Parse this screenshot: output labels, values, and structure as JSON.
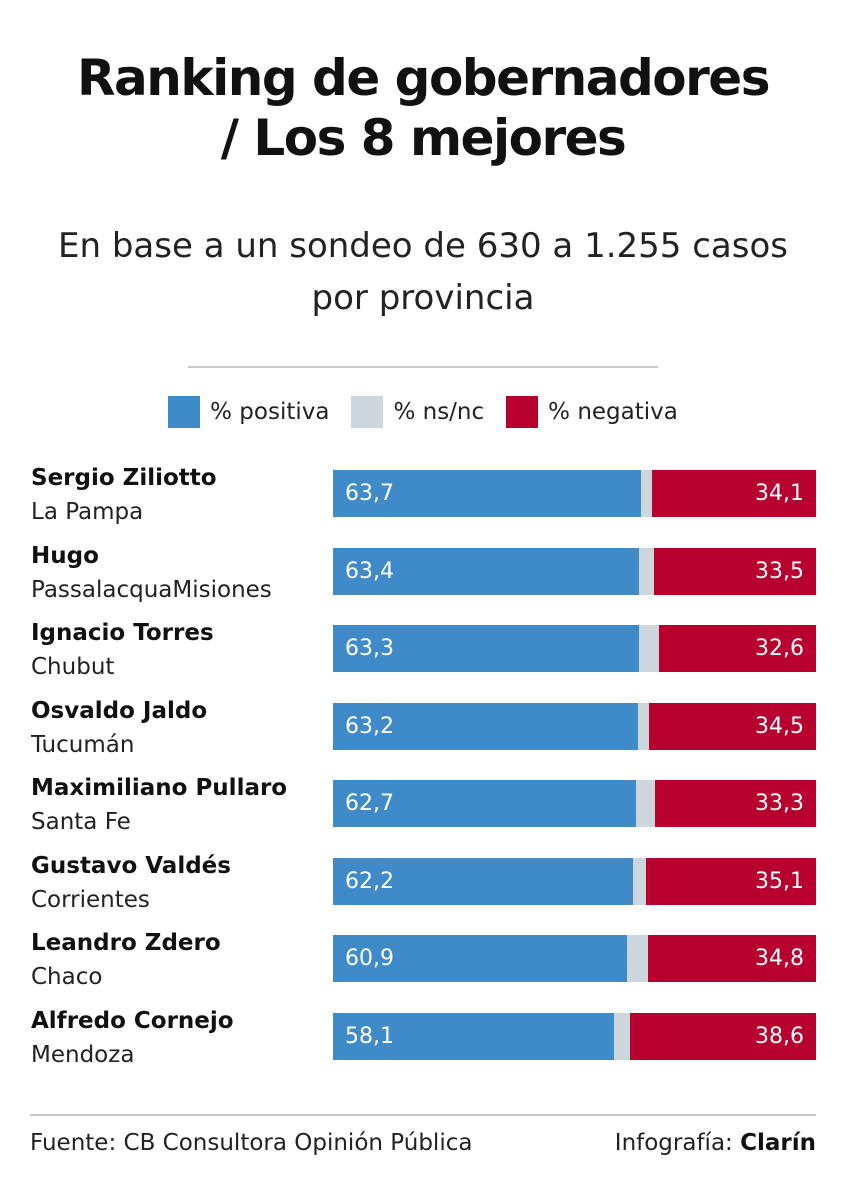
{
  "title_line1": "Ranking de gobernadores",
  "title_line2": "/ Los 8 mejores",
  "subtitle_line1": "En base a un sondeo de 630 a 1.255 casos",
  "subtitle_line2": "por provincia",
  "legend": [
    {
      "label": "% positiva",
      "color": "#3f8ac9"
    },
    {
      "label": "% ns/nc",
      "color": "#cdd6dd"
    },
    {
      "label": "% negativa",
      "color": "#b8002e"
    }
  ],
  "source": "Fuente: CB Consultora Opinión Pública",
  "credit_prefix": "Infografía:",
  "credit_brand": "Clarín",
  "chart_data": {
    "type": "bar",
    "orientation": "horizontal",
    "stacked": true,
    "scale": [
      0,
      100
    ],
    "title": "Ranking de gobernadores / Los 8 mejores",
    "subtitle": "En base a un sondeo de 630 a 1.255 casos por provincia",
    "categories": [
      {
        "name": "Sergio Ziliotto",
        "province": "La Pampa"
      },
      {
        "name": "Hugo",
        "province": "PassalacquaMisiones"
      },
      {
        "name": "Ignacio Torres",
        "province": "Chubut"
      },
      {
        "name": "Osvaldo Jaldo",
        "province": "Tucumán"
      },
      {
        "name": "Maximiliano Pullaro",
        "province": "Santa Fe"
      },
      {
        "name": "Gustavo Valdés",
        "province": "Corrientes"
      },
      {
        "name": "Leandro Zdero",
        "province": "Chaco"
      },
      {
        "name": "Alfredo Cornejo",
        "province": "Mendoza"
      }
    ],
    "series": [
      {
        "name": "% positiva",
        "color": "#3f8ac9",
        "values": [
          63.7,
          63.4,
          63.3,
          63.2,
          62.7,
          62.2,
          60.9,
          58.1
        ],
        "labels": [
          "63,7",
          "63,4",
          "63,3",
          "63,2",
          "62,7",
          "62,2",
          "60,9",
          "58,1"
        ]
      },
      {
        "name": "% ns/nc",
        "color": "#cdd6dd",
        "values": [
          2.2,
          3.1,
          4.1,
          2.3,
          4.0,
          2.7,
          4.3,
          3.3
        ],
        "labels": []
      },
      {
        "name": "% negativa",
        "color": "#b8002e",
        "values": [
          34.1,
          33.5,
          32.6,
          34.5,
          33.3,
          35.1,
          34.8,
          38.6
        ],
        "labels": [
          "34,1",
          "33,5",
          "32,6",
          "34,5",
          "33,3",
          "35,1",
          "34,8",
          "38,6"
        ]
      }
    ],
    "legend": "top-center",
    "grid": false
  }
}
